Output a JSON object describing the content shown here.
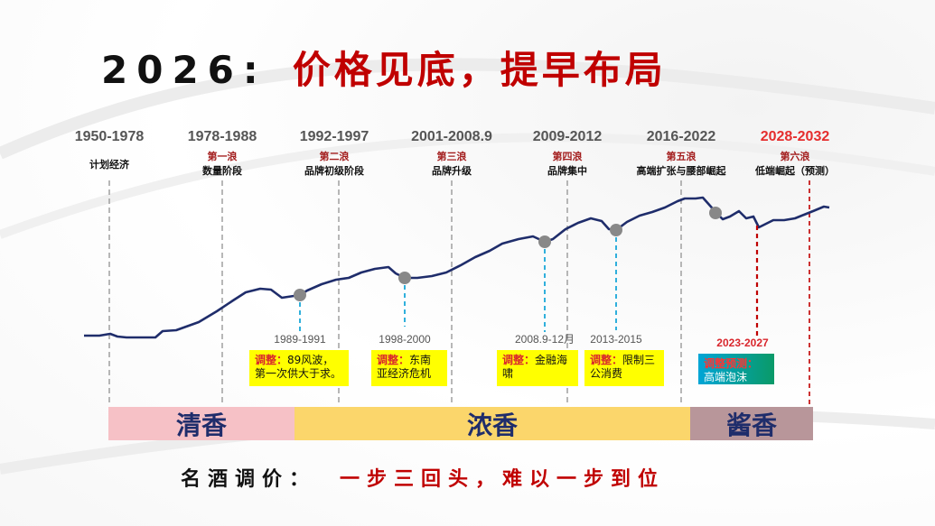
{
  "title": {
    "prefix": "2026:",
    "main": "价格见底，提早布局"
  },
  "chart_data": {
    "type": "line",
    "periods": [
      {
        "years": "1950-1978",
        "wave": "",
        "stage": "计划经济",
        "highlight": false
      },
      {
        "years": "1978-1988",
        "wave": "第一浪",
        "stage": "数量阶段",
        "highlight": false
      },
      {
        "years": "1992-1997",
        "wave": "第二浪",
        "stage": "品牌初级阶段",
        "highlight": false
      },
      {
        "years": "2001-2008.9",
        "wave": "第三浪",
        "stage": "品牌升级",
        "highlight": false
      },
      {
        "years": "2009-2012",
        "wave": "第四浪",
        "stage": "品牌集中",
        "highlight": false
      },
      {
        "years": "2016-2022",
        "wave": "第五浪",
        "stage": "高端扩张与腰部崛起",
        "highlight": false
      },
      {
        "years": "2028-2032",
        "wave": "第六浪",
        "stage": "低端崛起（预测）",
        "highlight": true
      }
    ],
    "adjustments": [
      {
        "period": "1989-1991",
        "label": "调整：",
        "text": "89风波，第一次供大于求。",
        "style": "yellow"
      },
      {
        "period": "1998-2000",
        "label": "调整：",
        "text": "东南亚经济危机",
        "style": "yellow"
      },
      {
        "period": "2008.9-12月",
        "label": "调整：",
        "text": "金融海啸",
        "style": "yellow"
      },
      {
        "period": "2013-2015",
        "label": "调整：",
        "text": "限制三公消费",
        "style": "yellow"
      },
      {
        "period": "2023-2027",
        "label": "调整预测：",
        "text": "高端泡沫",
        "style": "teal"
      }
    ],
    "bands": [
      {
        "name": "清香",
        "color": "#f6c1c6"
      },
      {
        "name": "浓香",
        "color": "#fbd66b"
      },
      {
        "name": "酱香",
        "color": "#b8969a"
      }
    ],
    "colors": {
      "line": "#1f2d6b",
      "marker": "#888888",
      "grey_guides": "#999999",
      "cyan_guides": "#19a7d9",
      "red_guides": "#c00000"
    }
  },
  "footer": {
    "lead": "名酒调价：",
    "rest": "一步三回头，难以一步到位"
  }
}
